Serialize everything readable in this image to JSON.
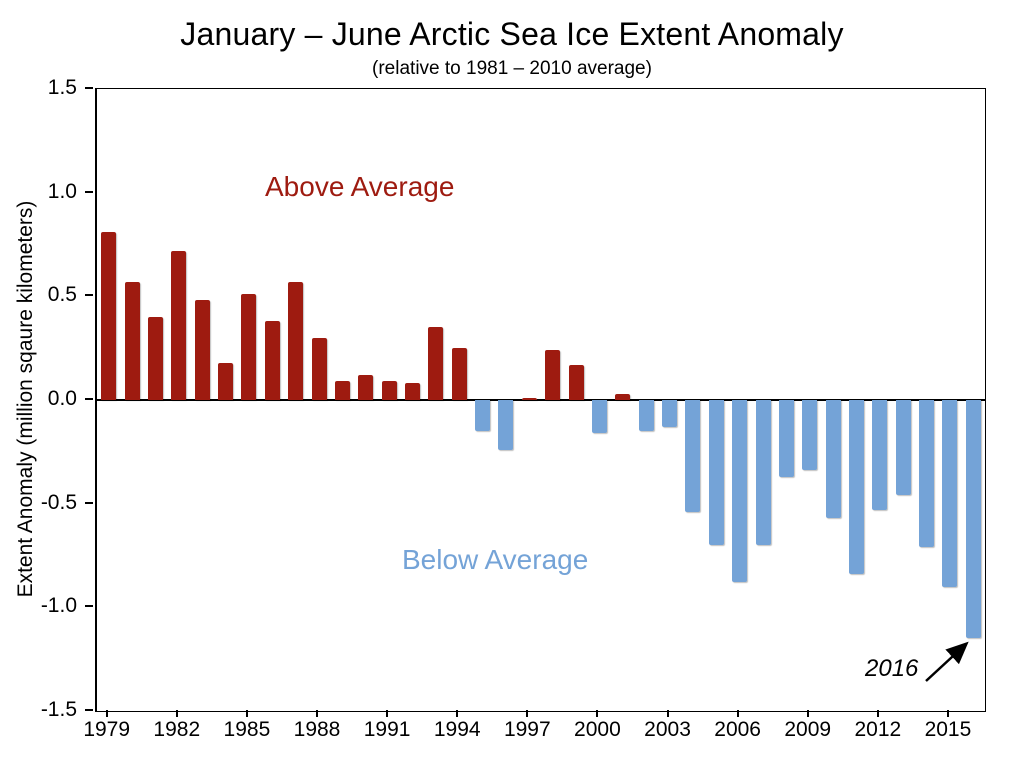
{
  "title": "January – June Arctic Sea Ice Extent Anomaly",
  "subtitle": "(relative to 1981 – 2010 average)",
  "annotations": {
    "above": "Above Average",
    "below": "Below Average",
    "year_2016": "2016"
  },
  "chart_data": {
    "type": "bar",
    "title": "January – June Arctic Sea Ice Extent Anomaly",
    "subtitle": "(relative to 1981 – 2010 average)",
    "xlabel": "",
    "ylabel": "Extent Anomaly (million sqaure kilometers)",
    "ylim": [
      -1.5,
      1.5
    ],
    "grid": false,
    "legend": "none",
    "yticks": [
      "1.5",
      "1.0",
      "0.5",
      "0.0",
      "-0.5",
      "-1.0",
      "-1.5"
    ],
    "xticks": [
      1979,
      1982,
      1985,
      1988,
      1991,
      1994,
      1997,
      2000,
      2003,
      2006,
      2009,
      2012,
      2015
    ],
    "categories": [
      1979,
      1980,
      1981,
      1982,
      1983,
      1984,
      1985,
      1986,
      1987,
      1988,
      1989,
      1990,
      1991,
      1992,
      1993,
      1994,
      1995,
      1996,
      1997,
      1998,
      1999,
      2000,
      2001,
      2002,
      2003,
      2004,
      2005,
      2006,
      2007,
      2008,
      2009,
      2010,
      2011,
      2012,
      2013,
      2014,
      2015,
      2016
    ],
    "values": [
      0.81,
      0.57,
      0.4,
      0.72,
      0.48,
      0.18,
      0.51,
      0.38,
      0.57,
      0.3,
      0.09,
      0.12,
      0.09,
      0.08,
      0.35,
      0.25,
      -0.15,
      -0.24,
      0.01,
      0.24,
      0.17,
      -0.16,
      0.03,
      -0.15,
      -0.13,
      -0.54,
      -0.7,
      -0.88,
      -0.7,
      -0.37,
      -0.34,
      -0.57,
      -0.84,
      -0.53,
      -0.46,
      -0.71,
      -0.9,
      -1.15
    ],
    "above_color": "#9E1B10",
    "below_color": "#74A3D7",
    "axis_color": "#000000"
  }
}
